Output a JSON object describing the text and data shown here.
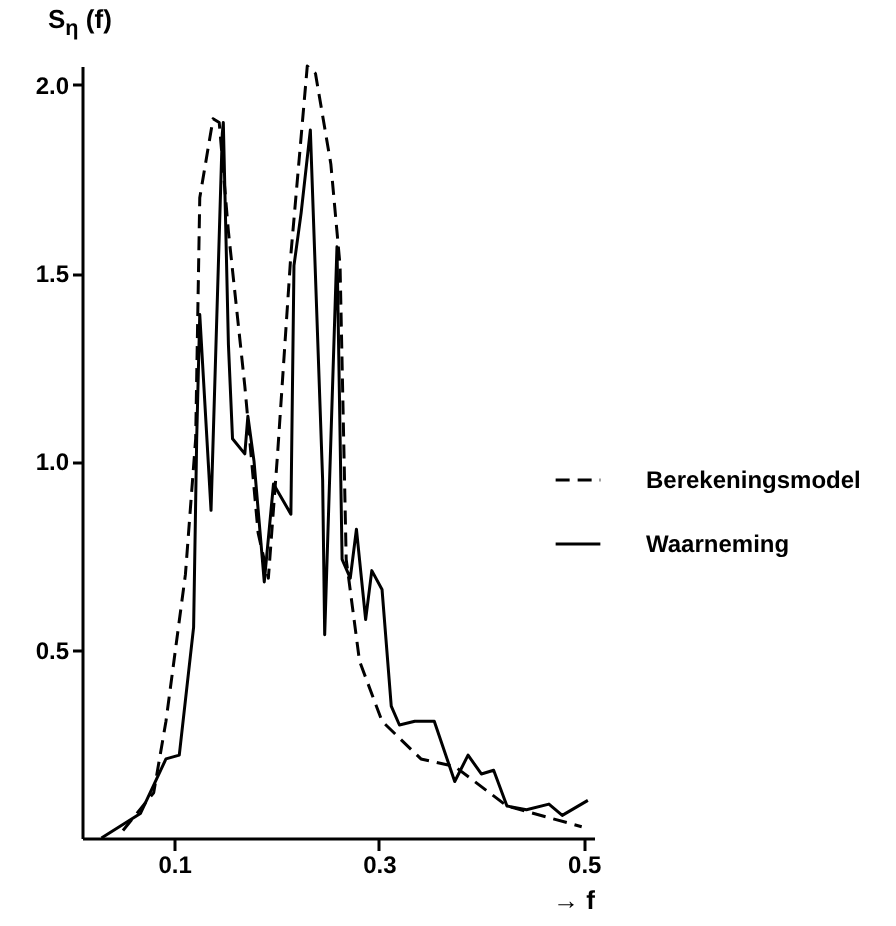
{
  "chart_data": {
    "type": "line",
    "ylabel": "S$_{η}$ (f)",
    "xlabel": "→ f",
    "xlim": [
      0.01,
      0.51
    ],
    "ylim": [
      0,
      2.05
    ],
    "xticks": [
      0.1,
      0.3,
      0.5
    ],
    "yticks": [
      {
        "value": 0.5,
        "label": "0.5"
      },
      {
        "value": 1,
        "label": "1.0"
      },
      {
        "value": 1.5,
        "label": "1.5"
      },
      {
        "value": 2,
        "label": "2.0"
      }
    ],
    "grid": false,
    "legend": "right",
    "marker": "none",
    "series": [
      {
        "name": "Berekeningsmodel",
        "color": "#000000",
        "line_style": "dashed",
        "x": [
          0.05,
          0.08,
          0.092,
          0.111,
          0.121,
          0.125,
          0.138,
          0.144,
          0.153,
          0.169,
          0.182,
          0.192,
          0.201,
          0.214,
          0.23,
          0.238,
          0.253,
          0.262,
          0.268,
          0.281,
          0.303,
          0.341,
          0.374,
          0.425,
          0.498
        ],
        "values": [
          0.02,
          0.12,
          0.31,
          0.7,
          1.06,
          1.7,
          1.91,
          1.9,
          1.61,
          1.2,
          0.81,
          0.69,
          1.02,
          1.55,
          2.05,
          2.03,
          1.79,
          1.52,
          0.74,
          0.47,
          0.31,
          0.21,
          0.19,
          0.085,
          0.03
        ]
      },
      {
        "name": "Waarneming",
        "color": "#000000",
        "line_style": "solid",
        "x": [
          0.029,
          0.067,
          0.092,
          0.105,
          0.119,
          0.122,
          0.125,
          0.136,
          0.147,
          0.148,
          0.153,
          0.157,
          0.169,
          0.172,
          0.178,
          0.188,
          0.197,
          0.214,
          0.217,
          0.224,
          0.233,
          0.245,
          0.247,
          0.259,
          0.264,
          0.272,
          0.278,
          0.287,
          0.293,
          0.303,
          0.312,
          0.32,
          0.335,
          0.354,
          0.374,
          0.387,
          0.4,
          0.412,
          0.425,
          0.444,
          0.466,
          0.479,
          0.504
        ],
        "values": [
          0,
          0.065,
          0.21,
          0.22,
          0.56,
          1.06,
          1.39,
          0.87,
          1.87,
          1.9,
          1.31,
          1.06,
          1.02,
          1.12,
          1.0,
          0.68,
          0.94,
          0.86,
          1.52,
          1.66,
          1.88,
          0.95,
          0.54,
          1.57,
          0.74,
          0.69,
          0.82,
          0.58,
          0.71,
          0.66,
          0.35,
          0.3,
          0.31,
          0.31,
          0.15,
          0.22,
          0.17,
          0.18,
          0.085,
          0.075,
          0.09,
          0.06,
          0.1
        ]
      }
    ]
  }
}
